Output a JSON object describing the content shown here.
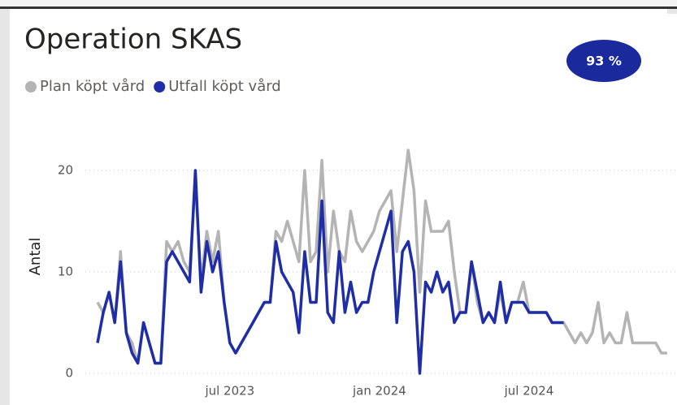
{
  "chart_data": {
    "type": "line",
    "title": "Operation SKAS",
    "kpi": "93 %",
    "ylabel": "Antal",
    "categories": [
      null,
      null,
      null,
      null,
      null,
      null,
      null,
      null,
      null,
      null,
      null,
      null,
      null,
      null,
      null,
      null,
      null,
      null,
      null,
      null,
      null,
      null,
      null,
      "jul 2023",
      null,
      null,
      null,
      null,
      null,
      null,
      null,
      null,
      null,
      null,
      null,
      null,
      null,
      null,
      null,
      null,
      null,
      null,
      null,
      null,
      null,
      null,
      null,
      null,
      null,
      "jan 2024",
      null,
      null,
      null,
      null,
      null,
      null,
      null,
      null,
      null,
      null,
      null,
      null,
      null,
      null,
      null,
      null,
      null,
      null,
      null,
      null,
      null,
      null,
      null,
      null,
      null,
      "jul 2024",
      null,
      null,
      null,
      null,
      null,
      null,
      null,
      null,
      null,
      null,
      null,
      null,
      null,
      null,
      null,
      null,
      null,
      null,
      null,
      null,
      null,
      null,
      null,
      null
    ],
    "series": [
      {
        "name": "Plan köpt vård",
        "color": "#b4b4b4",
        "values": [
          7,
          6,
          8,
          5,
          12,
          4,
          3,
          1,
          5,
          3,
          1,
          1,
          13,
          12,
          13,
          11,
          10,
          19,
          9,
          14,
          11,
          14,
          7,
          3,
          2,
          3,
          4,
          5,
          6,
          7,
          7,
          14,
          13,
          15,
          13,
          11,
          20,
          11,
          12,
          21,
          10,
          16,
          12,
          11,
          16,
          13,
          12,
          13,
          14,
          16,
          17,
          18,
          12,
          17,
          22,
          18,
          8,
          17,
          14,
          14,
          14,
          15,
          10,
          6,
          6,
          11,
          7,
          5,
          6,
          5,
          8,
          5,
          7,
          7,
          9,
          6,
          6,
          6,
          6,
          5,
          5,
          5,
          4,
          3,
          4,
          3,
          4,
          7,
          3,
          4,
          3,
          3,
          6,
          3,
          3,
          3,
          3,
          3,
          2,
          2
        ]
      },
      {
        "name": "Utfall köpt vård",
        "color": "#1f2ea6",
        "values": [
          3,
          6,
          8,
          5,
          11,
          4,
          2,
          1,
          5,
          3,
          1,
          1,
          11,
          12,
          11,
          10,
          9,
          20,
          8,
          13,
          10,
          12,
          7,
          3,
          2,
          3,
          4,
          5,
          6,
          7,
          7,
          13,
          10,
          9,
          8,
          4,
          12,
          7,
          7,
          17,
          6,
          5,
          12,
          6,
          9,
          6,
          7,
          7,
          10,
          12,
          14,
          16,
          5,
          12,
          13,
          10,
          0,
          9,
          8,
          10,
          8,
          9,
          5,
          6,
          6,
          11,
          8,
          5,
          6,
          5,
          9,
          5,
          7,
          7,
          7,
          6,
          6,
          6,
          6,
          5,
          5,
          5,
          null,
          null,
          null,
          null,
          null,
          null,
          null,
          null,
          null,
          null,
          null,
          null,
          null,
          null,
          null,
          null,
          null,
          null
        ]
      }
    ],
    "ylim": [
      0,
      23
    ],
    "yticks": [
      0,
      10,
      20
    ],
    "grid": true
  }
}
